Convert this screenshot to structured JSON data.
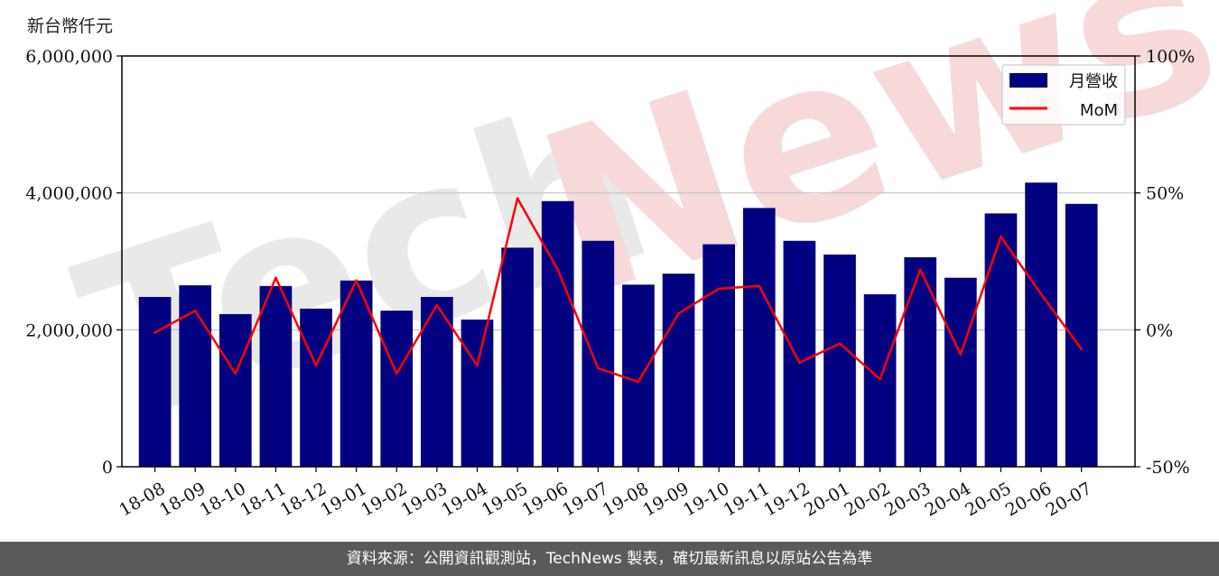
{
  "chart_data": {
    "type": "bar",
    "unit_label": "新台幣仟元",
    "categories": [
      "18-08",
      "18-09",
      "18-10",
      "18-11",
      "18-12",
      "19-01",
      "19-02",
      "19-03",
      "19-04",
      "19-05",
      "19-06",
      "19-07",
      "19-08",
      "19-09",
      "19-10",
      "19-11",
      "19-12",
      "20-01",
      "20-02",
      "20-03",
      "20-04",
      "20-05",
      "20-06",
      "20-07"
    ],
    "series": [
      {
        "name": "月營收",
        "type": "bar",
        "axis": "left",
        "color": "#000080",
        "values": [
          2480000,
          2650000,
          2230000,
          2640000,
          2310000,
          2720000,
          2280000,
          2480000,
          2150000,
          3200000,
          3880000,
          3300000,
          2660000,
          2820000,
          3250000,
          3780000,
          3300000,
          3100000,
          2520000,
          3060000,
          2760000,
          3700000,
          4150000,
          3840000
        ]
      },
      {
        "name": "MoM",
        "type": "line",
        "axis": "right",
        "color": "#ff0000",
        "values": [
          -1,
          7,
          -16,
          19,
          -13,
          18,
          -16,
          9,
          -13,
          48,
          22,
          -14,
          -19,
          6,
          15,
          16,
          -12,
          -5,
          -18,
          22,
          -9,
          34,
          13,
          -7
        ]
      }
    ],
    "y_left": {
      "ylim": [
        0,
        6000000
      ],
      "ticks": [
        "0",
        "2,000,000",
        "4,000,000",
        "6,000,000"
      ],
      "tick_values": [
        0,
        2000000,
        4000000,
        6000000
      ]
    },
    "y_right": {
      "ylim": [
        -50,
        100
      ],
      "ticks": [
        "-50%",
        "0%",
        "50%",
        "100%"
      ],
      "tick_values": [
        -50,
        0,
        50,
        100
      ]
    },
    "grid": true,
    "legend_position": "top-right"
  },
  "watermark": {
    "text_gray": "Tech",
    "text_red": "News"
  },
  "footer": {
    "text": "資料來源：公開資訊觀測站，TechNews 製表，確切最新訊息以原站公告為準"
  }
}
